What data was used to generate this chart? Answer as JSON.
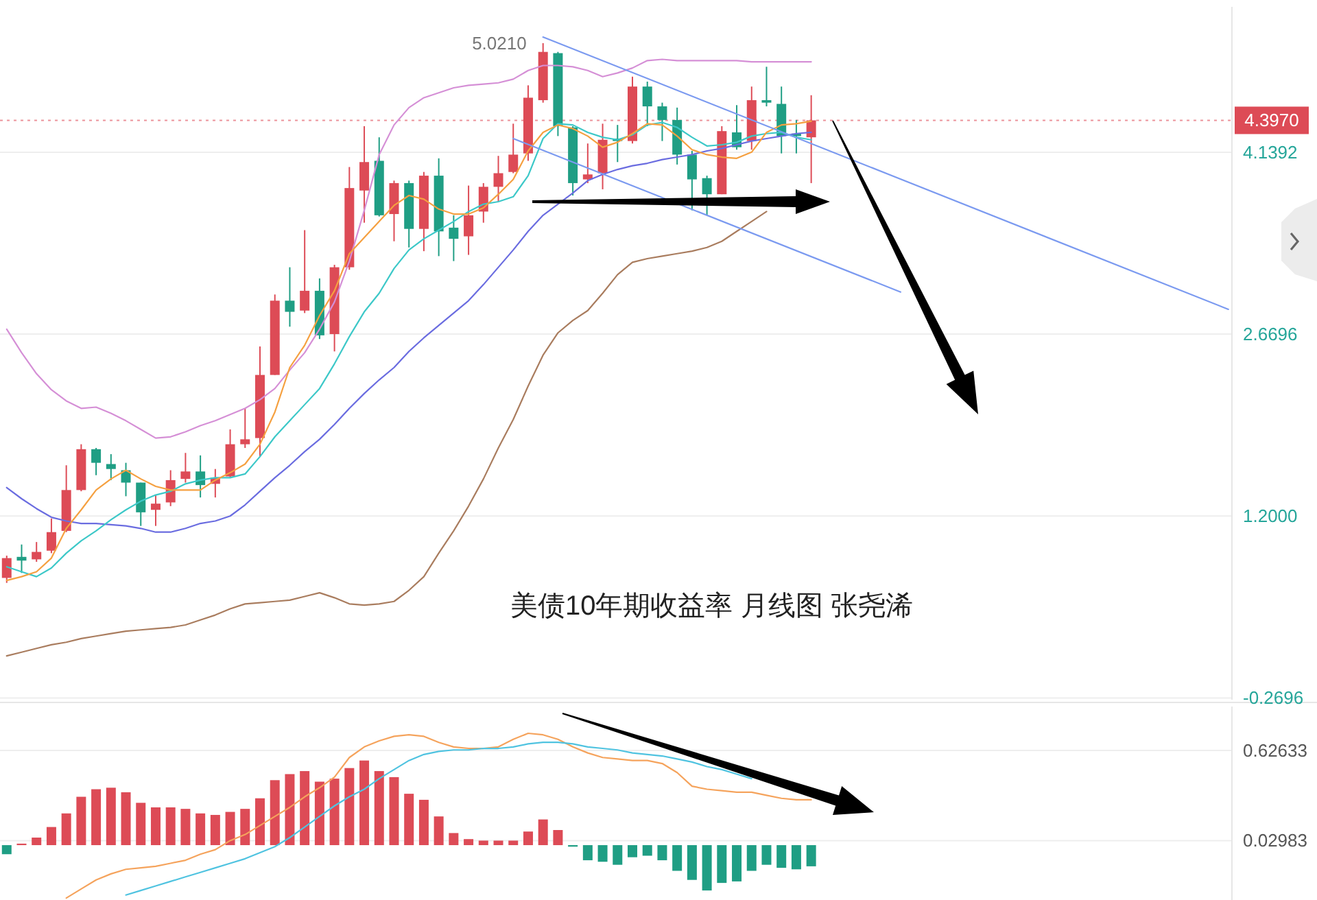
{
  "chart_data": [
    {
      "type": "candlestick",
      "categories": [
        null,
        null,
        null,
        null,
        null,
        null,
        null,
        null,
        null,
        null,
        null,
        null,
        null,
        null,
        null,
        null,
        null,
        null,
        null,
        null,
        null,
        null,
        null,
        null,
        null,
        null,
        null,
        null,
        null,
        null,
        null,
        null,
        null,
        null,
        null,
        null,
        null,
        null,
        null,
        null,
        null,
        null,
        null,
        null,
        null,
        null,
        null,
        null,
        null,
        null,
        null,
        null,
        null,
        null,
        null,
        null,
        null,
        null,
        null,
        null,
        null,
        null,
        null,
        null,
        null,
        null,
        null,
        null,
        null,
        null,
        null,
        null,
        null,
        null,
        null,
        null,
        null,
        null,
        null,
        null,
        null,
        null,
        null
      ],
      "ohlc": [
        [
          0.7,
          0.88,
          0.66,
          0.86
        ],
        [
          0.87,
          0.97,
          0.74,
          0.84
        ],
        [
          0.85,
          0.99,
          0.83,
          0.91
        ],
        [
          0.92,
          1.18,
          0.9,
          1.07
        ],
        [
          1.08,
          1.61,
          1.07,
          1.41
        ],
        [
          1.41,
          1.78,
          1.4,
          1.74
        ],
        [
          1.74,
          1.75,
          1.53,
          1.63
        ],
        [
          1.62,
          1.7,
          1.49,
          1.58
        ],
        [
          1.57,
          1.63,
          1.36,
          1.47
        ],
        [
          1.47,
          1.47,
          1.12,
          1.23
        ],
        [
          1.25,
          1.37,
          1.12,
          1.3
        ],
        [
          1.31,
          1.57,
          1.28,
          1.49
        ],
        [
          1.5,
          1.71,
          1.47,
          1.56
        ],
        [
          1.56,
          1.69,
          1.35,
          1.45
        ],
        [
          1.46,
          1.58,
          1.35,
          1.51
        ],
        [
          1.52,
          1.9,
          1.51,
          1.78
        ],
        [
          1.78,
          2.07,
          1.75,
          1.82
        ],
        [
          1.83,
          2.57,
          1.68,
          2.34
        ],
        [
          2.34,
          2.99,
          2.34,
          2.94
        ],
        [
          2.94,
          3.21,
          2.73,
          2.85
        ],
        [
          2.86,
          3.51,
          2.84,
          3.02
        ],
        [
          3.02,
          3.12,
          2.63,
          2.66
        ],
        [
          2.67,
          3.23,
          2.53,
          3.21
        ],
        [
          3.21,
          4.02,
          3.19,
          3.85
        ],
        [
          3.83,
          4.35,
          3.57,
          4.06
        ],
        [
          4.07,
          4.26,
          3.62,
          3.63
        ],
        [
          3.64,
          3.91,
          3.42,
          3.89
        ],
        [
          3.89,
          3.91,
          3.37,
          3.52
        ],
        [
          3.52,
          3.98,
          3.34,
          3.95
        ],
        [
          3.95,
          4.09,
          3.3,
          3.5
        ],
        [
          3.53,
          3.63,
          3.26,
          3.44
        ],
        [
          3.46,
          3.87,
          3.31,
          3.63
        ],
        [
          3.66,
          3.89,
          3.57,
          3.86
        ],
        [
          3.86,
          4.11,
          3.74,
          3.97
        ],
        [
          3.98,
          4.37,
          3.97,
          4.12
        ],
        [
          4.13,
          4.68,
          4.07,
          4.58
        ],
        [
          4.56,
          5.021,
          4.54,
          4.95
        ],
        [
          4.94,
          4.95,
          4.27,
          4.35
        ],
        [
          4.34,
          4.35,
          3.79,
          3.89
        ],
        [
          3.92,
          4.21,
          3.89,
          3.96
        ],
        [
          3.97,
          4.37,
          3.84,
          4.24
        ],
        [
          4.25,
          4.36,
          4.06,
          4.23
        ],
        [
          4.23,
          4.75,
          4.21,
          4.67
        ],
        [
          4.67,
          4.71,
          4.35,
          4.51
        ],
        [
          4.51,
          4.54,
          4.23,
          4.4
        ],
        [
          4.4,
          4.5,
          4.04,
          4.12
        ],
        [
          4.12,
          4.15,
          3.67,
          3.92
        ],
        [
          3.93,
          3.95,
          3.63,
          3.8
        ],
        [
          3.8,
          4.35,
          3.8,
          4.31
        ],
        [
          4.3,
          4.52,
          4.16,
          4.18
        ],
        [
          4.23,
          4.67,
          4.16,
          4.56
        ],
        [
          4.56,
          4.83,
          4.51,
          4.54
        ],
        [
          4.53,
          4.67,
          4.13,
          4.27
        ],
        [
          4.29,
          4.4,
          4.13,
          4.27
        ],
        [
          4.26,
          4.6,
          3.89,
          4.397
        ],
        null,
        null,
        null,
        null,
        null,
        null,
        null,
        null,
        null,
        null,
        null,
        null,
        null,
        null,
        null,
        null,
        null,
        null,
        null,
        null,
        null,
        null,
        null,
        null,
        null,
        null,
        null,
        null
      ],
      "colors": [
        "#dd4b56",
        "#1f9e84",
        "#dd4b56",
        "#dd4b56",
        "#dd4b56",
        "#dd4b56",
        "#1f9e84",
        "#1f9e84",
        "#1f9e84",
        "#1f9e84",
        "#dd4b56",
        "#dd4b56",
        "#dd4b56",
        "#1f9e84",
        "#dd4b56",
        "#dd4b56",
        "#dd4b56",
        "#dd4b56",
        "#dd4b56",
        "#1f9e84",
        "#dd4b56",
        "#1f9e84",
        "#dd4b56",
        "#dd4b56",
        "#dd4b56",
        "#1f9e84",
        "#dd4b56",
        "#1f9e84",
        "#dd4b56",
        "#1f9e84",
        "#1f9e84",
        "#dd4b56",
        "#dd4b56",
        "#dd4b56",
        "#dd4b56",
        "#dd4b56",
        "#dd4b56",
        "#1f9e84",
        "#1f9e84",
        "#dd4b56",
        "#dd4b56",
        "#1f9e84",
        "#dd4b56",
        "#1f9e84",
        "#1f9e84",
        "#1f9e84",
        "#1f9e84",
        "#1f9e84",
        "#dd4b56",
        "#1f9e84",
        "#dd4b56",
        "#1f9e84",
        "#1f9e84",
        "#1f9e84",
        "#dd4b56",
        null,
        null,
        null,
        null,
        null,
        null,
        null,
        null,
        null,
        null,
        null,
        null,
        null,
        null,
        null,
        null,
        null,
        null,
        null,
        null,
        null,
        null,
        null,
        null,
        null,
        null,
        null,
        null
      ],
      "series": [
        {
          "type": "line",
          "color": "#d58fd6",
          "values": [
            2.71,
            2.52,
            2.35,
            2.22,
            2.13,
            2.07,
            2.08,
            2.03,
            1.97,
            1.9,
            1.83,
            1.84,
            1.88,
            1.93,
            1.97,
            2.02,
            2.07,
            2.14,
            2.23,
            2.38,
            2.52,
            2.71,
            2.93,
            3.26,
            3.67,
            4.12,
            4.36,
            4.5,
            4.58,
            4.62,
            4.66,
            4.68,
            4.69,
            4.7,
            4.73,
            4.8,
            4.84,
            4.84,
            4.83,
            4.8,
            4.75,
            4.78,
            4.82,
            4.88,
            4.89,
            4.88,
            4.88,
            4.88,
            4.88,
            4.88,
            4.87,
            4.87,
            4.87,
            4.87,
            4.87,
            null,
            null,
            null,
            null,
            null,
            null,
            null,
            null,
            null,
            null,
            null,
            null,
            null,
            null,
            null,
            null,
            null,
            null,
            null,
            null,
            null,
            null,
            null,
            null,
            null,
            null,
            null,
            null
          ]
        },
        {
          "type": "line",
          "color": "#6a6ce0",
          "values": [
            1.43,
            1.34,
            1.26,
            1.19,
            1.16,
            1.14,
            1.14,
            1.13,
            1.12,
            1.1,
            1.07,
            1.07,
            1.1,
            1.14,
            1.16,
            1.2,
            1.29,
            1.4,
            1.51,
            1.61,
            1.72,
            1.82,
            1.94,
            2.07,
            2.19,
            2.3,
            2.4,
            2.53,
            2.64,
            2.74,
            2.84,
            2.94,
            3.07,
            3.21,
            3.35,
            3.5,
            3.63,
            3.72,
            3.81,
            3.91,
            3.96,
            4.0,
            4.03,
            4.05,
            4.08,
            4.1,
            4.12,
            4.15,
            4.17,
            4.2,
            4.23,
            4.25,
            4.27,
            4.29,
            4.3,
            null,
            null,
            null,
            null,
            null,
            null,
            null,
            null,
            null,
            null,
            null,
            null,
            null,
            null,
            null,
            null,
            null,
            null,
            null,
            null,
            null,
            null,
            null,
            null,
            null,
            null,
            null,
            null
          ]
        },
        {
          "type": "line",
          "color": "#a97c5e",
          "values": [
            0.07,
            0.1,
            0.13,
            0.16,
            0.18,
            0.21,
            0.23,
            0.25,
            0.27,
            0.28,
            0.29,
            0.3,
            0.32,
            0.36,
            0.4,
            0.45,
            0.49,
            0.5,
            0.51,
            0.52,
            0.55,
            0.58,
            0.54,
            0.49,
            0.48,
            0.49,
            0.51,
            0.6,
            0.71,
            0.9,
            1.08,
            1.28,
            1.5,
            1.75,
            1.98,
            2.25,
            2.5,
            2.68,
            2.78,
            2.86,
            3.0,
            3.15,
            3.25,
            3.28,
            3.3,
            3.32,
            3.34,
            3.37,
            3.42,
            3.5,
            3.58,
            3.66,
            null,
            null,
            null,
            null,
            null,
            null,
            null,
            null,
            null,
            null,
            null,
            null,
            null,
            null,
            null,
            null,
            null,
            null,
            null,
            null,
            null,
            null,
            null,
            null,
            null,
            null,
            null,
            null,
            null,
            null,
            null
          ]
        },
        {
          "type": "line",
          "color": "#3cc8c8",
          "values": [
            0.79,
            0.75,
            0.71,
            0.78,
            0.9,
            1.0,
            1.08,
            1.17,
            1.25,
            1.32,
            1.37,
            1.4,
            1.46,
            1.49,
            1.51,
            1.51,
            1.54,
            1.68,
            1.84,
            1.97,
            2.1,
            2.23,
            2.43,
            2.65,
            2.85,
            3.0,
            3.2,
            3.35,
            3.44,
            3.51,
            3.58,
            3.66,
            3.72,
            3.74,
            3.78,
            3.95,
            4.25,
            4.37,
            4.36,
            4.3,
            4.26,
            4.24,
            4.28,
            4.36,
            4.38,
            4.34,
            4.26,
            4.19,
            4.2,
            4.22,
            4.27,
            4.29,
            4.3,
            4.26,
            4.24,
            null,
            null,
            null,
            null,
            null,
            null,
            null,
            null,
            null,
            null,
            null,
            null,
            null,
            null,
            null,
            null,
            null,
            null,
            null,
            null,
            null,
            null,
            null,
            null,
            null,
            null,
            null,
            null
          ]
        },
        {
          "type": "line",
          "color": "#f5a040",
          "values": [
            0.68,
            0.71,
            0.75,
            0.86,
            1.1,
            1.25,
            1.41,
            1.5,
            1.57,
            1.5,
            1.44,
            1.41,
            1.41,
            1.41,
            1.49,
            1.55,
            1.62,
            1.78,
            2.04,
            2.4,
            2.58,
            2.82,
            3.02,
            3.32,
            3.45,
            3.58,
            3.71,
            3.79,
            3.76,
            3.68,
            3.64,
            3.64,
            3.69,
            3.8,
            3.92,
            4.15,
            4.3,
            4.36,
            4.33,
            4.27,
            4.18,
            4.22,
            4.29,
            4.37,
            4.36,
            4.27,
            4.16,
            4.12,
            4.1,
            4.09,
            4.14,
            4.3,
            4.36,
            4.37,
            4.39,
            null,
            null,
            null,
            null,
            null,
            null,
            null,
            null,
            null,
            null,
            null,
            null,
            null,
            null,
            null,
            null,
            null,
            null,
            null,
            null,
            null,
            null,
            null,
            null,
            null,
            null,
            null,
            null
          ]
        },
        {
          "type": "line",
          "color": "#7b9af0",
          "values": [
            null,
            null,
            null,
            null,
            null,
            null,
            null,
            null,
            null,
            null,
            null,
            null,
            null,
            null,
            null,
            null,
            null,
            null,
            null,
            null,
            null,
            null,
            null,
            null,
            null,
            null,
            null,
            null,
            null,
            null,
            null,
            null,
            null,
            null,
            null,
            null,
            5.07,
            null,
            null,
            null,
            null,
            null,
            null,
            null,
            null,
            null,
            null,
            null,
            null,
            null,
            null,
            null,
            null,
            null,
            null,
            null,
            null,
            null,
            null,
            null,
            null,
            null,
            null,
            null,
            null,
            null,
            null,
            null,
            null,
            null,
            null,
            null,
            null,
            null,
            null,
            null,
            null,
            null,
            null,
            null,
            null,
            null,
            2.87
          ]
        },
        {
          "type": "line",
          "color": "#7b9af0",
          "values": [
            null,
            null,
            null,
            null,
            null,
            null,
            null,
            null,
            null,
            null,
            null,
            null,
            null,
            null,
            null,
            null,
            null,
            null,
            null,
            null,
            null,
            null,
            null,
            null,
            null,
            null,
            null,
            null,
            null,
            null,
            null,
            null,
            null,
            null,
            4.25,
            null,
            null,
            null,
            null,
            null,
            null,
            null,
            null,
            null,
            null,
            null,
            null,
            null,
            null,
            null,
            null,
            null,
            null,
            null,
            null,
            null,
            null,
            null,
            null,
            null,
            3.01,
            null,
            null,
            null,
            null,
            null,
            null,
            null,
            null,
            null,
            null,
            null,
            null,
            null,
            null,
            null,
            null,
            null,
            null,
            null,
            null,
            null,
            null
          ]
        }
      ],
      "ylim": [
        -0.284,
        5.314
      ],
      "yticks": [
        4.1392,
        2.6696,
        {
          "value": 1.2,
          "label": "1.2000"
        },
        -0.2696
      ],
      "grid": "y",
      "ref_lines": [
        {
          "axis": "y",
          "value": 4.397,
          "label": "4.3970",
          "color": "#dd4b56",
          "line_style": "dotted"
        }
      ],
      "annotations": [
        "5.0210",
        "美债10年期收益率 月线图 张尧浠"
      ]
    },
    {
      "type": "bar",
      "categories": [
        null,
        null,
        null,
        null,
        null,
        null,
        null,
        null,
        null,
        null,
        null,
        null,
        null,
        null,
        null,
        null,
        null,
        null,
        null,
        null,
        null,
        null,
        null,
        null,
        null,
        null,
        null,
        null,
        null,
        null,
        null,
        null,
        null,
        null,
        null,
        null,
        null,
        null,
        null,
        null,
        null,
        null,
        null,
        null,
        null,
        null,
        null,
        null,
        null,
        null,
        null,
        null,
        null,
        null,
        null,
        null,
        null,
        null,
        null,
        null,
        null,
        null,
        null,
        null,
        null,
        null,
        null,
        null,
        null,
        null,
        null,
        null,
        null,
        null,
        null,
        null,
        null,
        null,
        null,
        null,
        null,
        null,
        null
      ],
      "series": [
        {
          "type": "bar",
          "values": [
            -0.06,
            0.01,
            0.05,
            0.12,
            0.21,
            0.32,
            0.37,
            0.38,
            0.35,
            0.28,
            0.25,
            0.25,
            0.24,
            0.21,
            0.2,
            0.22,
            0.24,
            0.31,
            0.43,
            0.47,
            0.49,
            0.42,
            0.44,
            0.51,
            0.56,
            0.49,
            0.45,
            0.34,
            0.3,
            0.19,
            0.08,
            0.04,
            0.03,
            0.03,
            0.03,
            0.09,
            0.17,
            0.1,
            -0.01,
            -0.1,
            -0.11,
            -0.13,
            -0.08,
            -0.07,
            -0.1,
            -0.17,
            -0.23,
            -0.3,
            -0.25,
            -0.24,
            -0.17,
            -0.13,
            -0.15,
            -0.16,
            -0.14,
            null,
            null,
            null,
            null,
            null,
            null,
            null,
            null,
            null,
            null,
            null,
            null,
            null,
            null,
            null,
            null,
            null,
            null,
            null,
            null,
            null,
            null,
            null,
            null,
            null,
            null,
            null,
            null
          ],
          "colors": [
            "#1f9e84",
            "#dd4b56",
            "#dd4b56",
            "#dd4b56",
            "#dd4b56",
            "#dd4b56",
            "#dd4b56",
            "#dd4b56",
            "#dd4b56",
            "#dd4b56",
            "#dd4b56",
            "#dd4b56",
            "#dd4b56",
            "#dd4b56",
            "#dd4b56",
            "#dd4b56",
            "#dd4b56",
            "#dd4b56",
            "#dd4b56",
            "#dd4b56",
            "#dd4b56",
            "#dd4b56",
            "#dd4b56",
            "#dd4b56",
            "#dd4b56",
            "#dd4b56",
            "#dd4b56",
            "#dd4b56",
            "#dd4b56",
            "#dd4b56",
            "#dd4b56",
            "#dd4b56",
            "#dd4b56",
            "#dd4b56",
            "#dd4b56",
            "#dd4b56",
            "#dd4b56",
            "#dd4b56",
            "#1f9e84",
            "#1f9e84",
            "#1f9e84",
            "#1f9e84",
            "#1f9e84",
            "#1f9e84",
            "#1f9e84",
            "#1f9e84",
            "#1f9e84",
            "#1f9e84",
            "#1f9e84",
            "#1f9e84",
            "#1f9e84",
            "#1f9e84",
            "#1f9e84",
            "#1f9e84",
            "#1f9e84",
            null,
            null,
            null,
            null,
            null,
            null,
            null,
            null,
            null,
            null,
            null,
            null,
            null,
            null,
            null,
            null,
            null,
            null,
            null,
            null,
            null,
            null,
            null,
            null,
            null,
            null,
            null,
            null
          ]
        },
        {
          "type": "line",
          "color": "#f5a35c",
          "values": [
            null,
            null,
            null,
            null,
            -0.35,
            -0.29,
            -0.23,
            -0.19,
            -0.16,
            -0.15,
            -0.14,
            -0.12,
            -0.1,
            -0.06,
            -0.03,
            0.03,
            0.07,
            0.13,
            0.19,
            0.25,
            0.32,
            0.38,
            0.45,
            0.58,
            0.65,
            0.69,
            0.72,
            0.73,
            0.72,
            0.68,
            0.65,
            0.64,
            0.64,
            0.65,
            0.7,
            0.74,
            0.73,
            0.7,
            0.65,
            0.61,
            0.58,
            0.57,
            0.56,
            0.56,
            0.54,
            0.48,
            0.39,
            0.37,
            0.36,
            0.35,
            0.35,
            0.33,
            0.31,
            0.3,
            0.3,
            null,
            null,
            null,
            null,
            null,
            null,
            null,
            null,
            null,
            null,
            null,
            null,
            null,
            null,
            null,
            null,
            null,
            null,
            null,
            null,
            null,
            null,
            null,
            null,
            null,
            null,
            null,
            null
          ]
        },
        {
          "type": "line",
          "color": "#4fc3e0",
          "values": [
            null,
            null,
            null,
            null,
            null,
            null,
            null,
            null,
            -0.33,
            -0.3,
            -0.27,
            -0.24,
            -0.21,
            -0.18,
            -0.15,
            -0.12,
            -0.09,
            -0.05,
            -0.01,
            0.05,
            0.12,
            0.19,
            0.26,
            0.32,
            0.37,
            0.44,
            0.5,
            0.56,
            0.6,
            0.62,
            0.63,
            0.63,
            0.64,
            0.64,
            0.65,
            0.67,
            0.68,
            0.68,
            0.67,
            0.65,
            0.64,
            0.63,
            0.61,
            0.6,
            0.59,
            0.57,
            0.55,
            0.52,
            0.5,
            0.47,
            0.44,
            null,
            null,
            null,
            null,
            null,
            null,
            null,
            null,
            null,
            null,
            null,
            null,
            null,
            null,
            null,
            null,
            null,
            null,
            null,
            null,
            null,
            null,
            null,
            null,
            null,
            null,
            null,
            null,
            null,
            null,
            null,
            null
          ]
        }
      ],
      "ylim": [
        -0.363,
        0.917
      ],
      "yticks": [
        0.62633,
        0.02983
      ],
      "grid": "y"
    }
  ]
}
